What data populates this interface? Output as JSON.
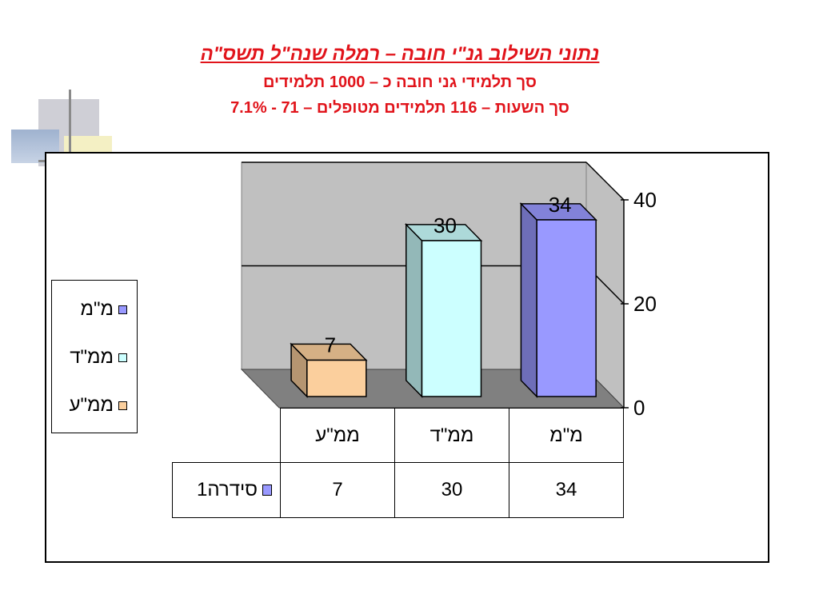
{
  "title": {
    "main": "נתוני השילוב גנ\"י חובה – רמלה שנה\"ל תשס\"ה",
    "sub1": "סך תלמידי גני חובה כ – 1000 תלמידים",
    "sub2": "סך השעות – 116 תלמידים מטופלים – 71 - 7.1%"
  },
  "chart_data": {
    "type": "bar",
    "categories": [
      "ממ\"ע",
      "ממ\"ד",
      "מ\"מ"
    ],
    "series": [
      {
        "name": "סידרה1",
        "values": [
          7,
          30,
          34
        ]
      }
    ],
    "data_labels": [
      "7",
      "30",
      "34"
    ],
    "ylim": [
      0,
      40
    ],
    "yticks": [
      "0",
      "20",
      "40"
    ],
    "y_axis_side": "right",
    "grid": true,
    "legend_placement": "left",
    "bar_colors": [
      "#fbcf9d",
      "#ccffff",
      "#9999ff"
    ],
    "data_table": true
  },
  "legend": {
    "items": [
      {
        "label": "מ\"מ",
        "color": "#9999ff"
      },
      {
        "label": "ממ\"ד",
        "color": "#ccffff"
      },
      {
        "label": "ממ\"ע",
        "color": "#fbcf9d"
      }
    ]
  },
  "table": {
    "headers": [
      "ממ\"ע",
      "ממ\"ד",
      "מ\"מ"
    ],
    "series_label": "סידרה1",
    "series_color": "#9999ff",
    "values": [
      "7",
      "30",
      "34"
    ]
  }
}
